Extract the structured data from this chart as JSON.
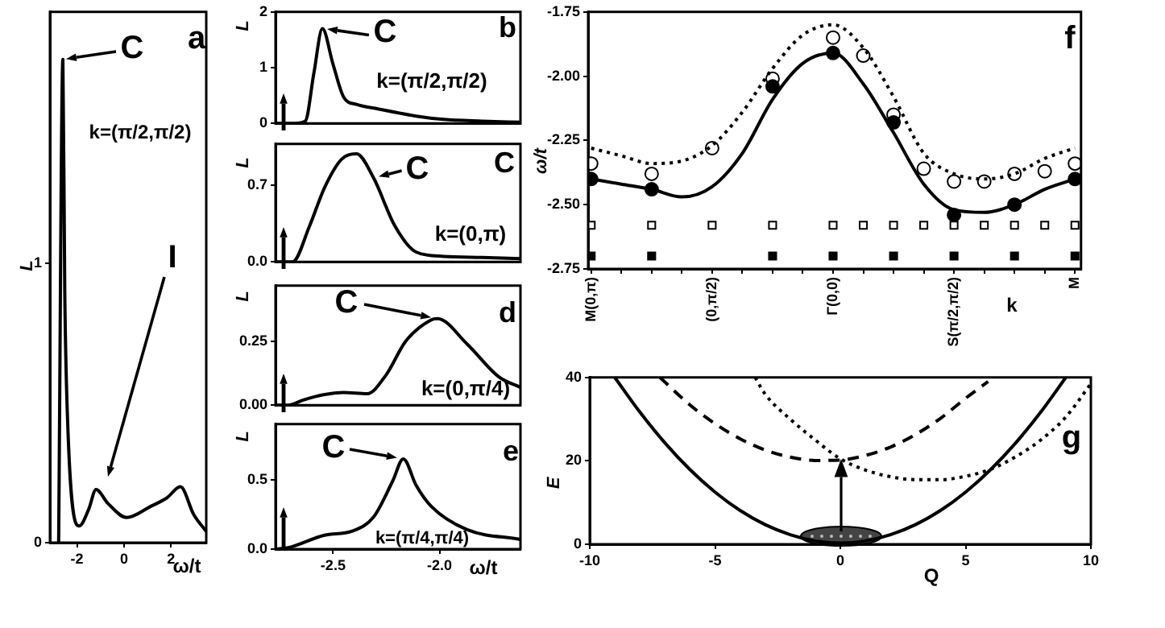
{
  "chart_data": [
    {
      "type": "line",
      "xlabel": "ω/t",
      "ylabel": "L",
      "xlim": [
        -3.15,
        3.5
      ],
      "ylim": [
        0,
        1.9
      ],
      "xticks": [
        -2,
        0,
        2
      ],
      "yticks": [
        0,
        1
      ],
      "annotations": [
        "a",
        {
          "text": "C",
          "x": -2.6,
          "y": 1.73
        },
        "k=(π/2,π/2)",
        "I"
      ],
      "series": [
        {
          "color": "#000000",
          "x": [
            -2.78,
            -2.6,
            -2.52,
            -2.4,
            -2.05,
            -1.9,
            -1.5,
            -1.19,
            -0.68,
            0.11,
            1.14,
            1.82,
            2.4,
            2.97,
            3.5
          ],
          "values": [
            0,
            1.73,
            0.9,
            0.44,
            0.07,
            0.06,
            0.12,
            0.19,
            0.14,
            0.09,
            0.13,
            0.16,
            0.2,
            0.1,
            0.04
          ]
        }
      ]
    },
    {
      "type": "line",
      "ylabel": "L",
      "xlim": [
        -2.77,
        -1.62
      ],
      "ylim": [
        0,
        2
      ],
      "yticks": [
        0,
        1,
        2
      ],
      "tick_labels": "y",
      "annotations": [
        "b",
        {
          "text": "C",
          "x": -2.55,
          "y": 1.7
        },
        "k=(π/2,π/2)"
      ],
      "series": [
        {
          "color": "#000000",
          "x": [
            -2.77,
            -2.68,
            -2.63,
            -2.59,
            -2.55,
            -2.5,
            -2.45,
            -2.39,
            -2.29,
            -2.11,
            -1.98,
            -1.8,
            -1.62
          ],
          "values": [
            0,
            0,
            0.04,
            0.9,
            1.7,
            1.06,
            0.47,
            0.34,
            0.26,
            0.13,
            0.07,
            0.04,
            0.02
          ]
        }
      ]
    },
    {
      "type": "line",
      "ylabel": "L",
      "xlim": [
        -2.77,
        -1.62
      ],
      "ylim": [
        0,
        1.08
      ],
      "yticks": [
        {
          "value": 0,
          "label": "0.0"
        },
        0.7
      ],
      "tick_labels": "y",
      "annotations": [
        "C",
        {
          "text": "C",
          "x": -2.31,
          "y": 0.77
        },
        "k=(0,π)"
      ],
      "series": [
        {
          "color": "#000000",
          "x": [
            -2.77,
            -2.69,
            -2.61,
            -2.54,
            -2.46,
            -2.39,
            -2.31,
            -2.21,
            -2.11,
            -1.98,
            -1.8,
            -1.62
          ],
          "values": [
            0,
            0,
            0.33,
            0.68,
            0.94,
            0.99,
            0.77,
            0.33,
            0.09,
            0.05,
            0.04,
            0.03
          ]
        }
      ]
    },
    {
      "type": "line",
      "ylabel": "L",
      "xlim": [
        -2.77,
        -1.62
      ],
      "ylim": [
        0,
        0.47
      ],
      "yticks": [
        {
          "value": 0,
          "label": "0.00"
        },
        0.25
      ],
      "tick_labels": "y",
      "annotations": [
        "d",
        {
          "text": "C",
          "x": -2.01,
          "y": 0.34
        },
        "k=(0,π/4)"
      ],
      "series": [
        {
          "color": "#000000",
          "x": [
            -2.77,
            -2.71,
            -2.64,
            -2.55,
            -2.45,
            -2.34,
            -2.25,
            -2.16,
            -2.04,
            -2.01,
            -1.87,
            -1.72,
            -1.62
          ],
          "values": [
            0,
            0,
            0.02,
            0.04,
            0.05,
            0.045,
            0.12,
            0.25,
            0.335,
            0.34,
            0.24,
            0.11,
            0.07
          ]
        }
      ]
    },
    {
      "type": "line",
      "xlabel": "ω/t",
      "ylabel": "L",
      "xlim": [
        -2.77,
        -1.62
      ],
      "ylim": [
        0,
        0.9
      ],
      "xticks": [
        -2.5,
        {
          "value": -2,
          "label": "-2.0"
        }
      ],
      "yticks": [
        {
          "value": 0,
          "label": "0.0"
        },
        0.5
      ],
      "annotations": [
        "e",
        {
          "text": "C",
          "x": -2.17,
          "y": 0.65
        },
        "k=(π/4,π/4)"
      ],
      "series": [
        {
          "color": "#000000",
          "x": [
            -2.77,
            -2.71,
            -2.54,
            -2.41,
            -2.31,
            -2.22,
            -2.17,
            -2.11,
            -2.04,
            -1.87,
            -1.62
          ],
          "values": [
            0,
            0.01,
            0.1,
            0.13,
            0.23,
            0.49,
            0.65,
            0.46,
            0.31,
            0.14,
            0.07
          ]
        }
      ]
    },
    {
      "type": "line",
      "xlabel": "k",
      "ylabel": "ω/t",
      "ylim": [
        -2.75,
        -1.75
      ],
      "categories": [
        "M(0,π)",
        null,
        null,
        null,
        "(0,π/2)",
        null,
        null,
        null,
        "Γ(0,0)",
        null,
        null,
        null,
        "S(π/2,π/2)",
        null,
        null,
        null,
        "M"
      ],
      "yticks": [
        -2.75,
        {
          "value": -2.5,
          "label": "-2.50"
        },
        -2.25,
        {
          "value": -2,
          "label": "-2.00"
        },
        -1.75
      ],
      "annotations": [
        "f"
      ],
      "series": [
        {
          "line_style": "solid",
          "color": "#000000",
          "values": [
            -2.4,
            -2.42,
            -2.44,
            -2.47,
            -2.43,
            -2.3,
            -2.09,
            -1.95,
            -1.91,
            -2.03,
            -2.22,
            -2.42,
            -2.52,
            -2.53,
            -2.5,
            -2.44,
            -2.4
          ]
        },
        {
          "line_style": "dotted",
          "color": "#000000",
          "values": [
            -2.28,
            -2.31,
            -2.34,
            -2.33,
            -2.27,
            -2.14,
            -1.97,
            -1.84,
            -1.8,
            -1.89,
            -2.08,
            -2.3,
            -2.38,
            -2.4,
            -2.38,
            -2.32,
            -2.28
          ]
        },
        {
          "type": "scatter",
          "marker": "circle",
          "color": "#000000",
          "values": [
            -2.4,
            null,
            -2.44,
            null,
            null,
            null,
            -2.04,
            null,
            -1.91,
            null,
            -2.18,
            null,
            -2.54,
            null,
            -2.5,
            null,
            -2.4
          ]
        },
        {
          "type": "scatter",
          "marker": "circle",
          "color": "#ffffff",
          "values": [
            -2.34,
            null,
            -2.38,
            null,
            -2.28,
            null,
            -2.01,
            null,
            -1.85,
            -1.92,
            -2.15,
            -2.36,
            -2.41,
            -2.41,
            -2.38,
            -2.37,
            -2.34
          ]
        },
        {
          "type": "scatter",
          "marker": "square",
          "color": "#ffffff",
          "values": [
            -2.58,
            null,
            -2.58,
            null,
            -2.58,
            null,
            -2.58,
            null,
            -2.58,
            -2.58,
            -2.58,
            -2.58,
            -2.58,
            -2.58,
            -2.58,
            -2.58,
            -2.58
          ]
        },
        {
          "type": "scatter",
          "marker": "square",
          "color": "#000000",
          "values": [
            -2.7,
            null,
            -2.7,
            null,
            null,
            null,
            -2.7,
            null,
            -2.7,
            null,
            -2.7,
            null,
            -2.7,
            null,
            -2.7,
            null,
            -2.7
          ]
        }
      ]
    },
    {
      "type": "line",
      "xlabel": "Q",
      "ylabel": "E",
      "xlim": [
        -10,
        10
      ],
      "ylim": [
        0,
        40
      ],
      "xticks": [
        -10,
        -5,
        0,
        5,
        10
      ],
      "yticks": [
        0,
        20,
        40
      ],
      "annotations": [
        "g"
      ],
      "series": [
        {
          "line_style": "solid",
          "color": "#000000",
          "x": [
            -9,
            -8,
            -7,
            -6,
            -5,
            -4,
            -3,
            -2,
            -1,
            0,
            1,
            2,
            3,
            4,
            5,
            6,
            7,
            8,
            9
          ],
          "values": [
            40,
            31.7,
            24.3,
            17.9,
            12.5,
            8.1,
            4.7,
            2.3,
            0.8,
            0.3,
            0.8,
            2.3,
            4.7,
            8.1,
            12.5,
            17.9,
            24.3,
            31.7,
            40
          ]
        },
        {
          "line_style": "dashed",
          "color": "#000000",
          "x": [
            -7.2,
            -6,
            -5,
            -4,
            -3,
            -2,
            -1,
            0,
            1,
            2,
            3,
            4,
            5,
            5.9
          ],
          "values": [
            40,
            33.4,
            28.9,
            25.3,
            22.6,
            20.9,
            20.1,
            20.2,
            21.3,
            23.3,
            26.3,
            30.2,
            35,
            39
          ]
        },
        {
          "line_style": "dotted",
          "color": "#000000",
          "x": [
            -3.4,
            -3,
            -2,
            -1,
            0,
            1,
            2,
            3,
            4,
            5,
            6,
            7,
            8,
            9,
            10
          ],
          "values": [
            40,
            36,
            30,
            25,
            20.5,
            17.8,
            16.2,
            15.5,
            15.5,
            16.3,
            18,
            21,
            25,
            30.5,
            38.5
          ]
        }
      ]
    }
  ]
}
